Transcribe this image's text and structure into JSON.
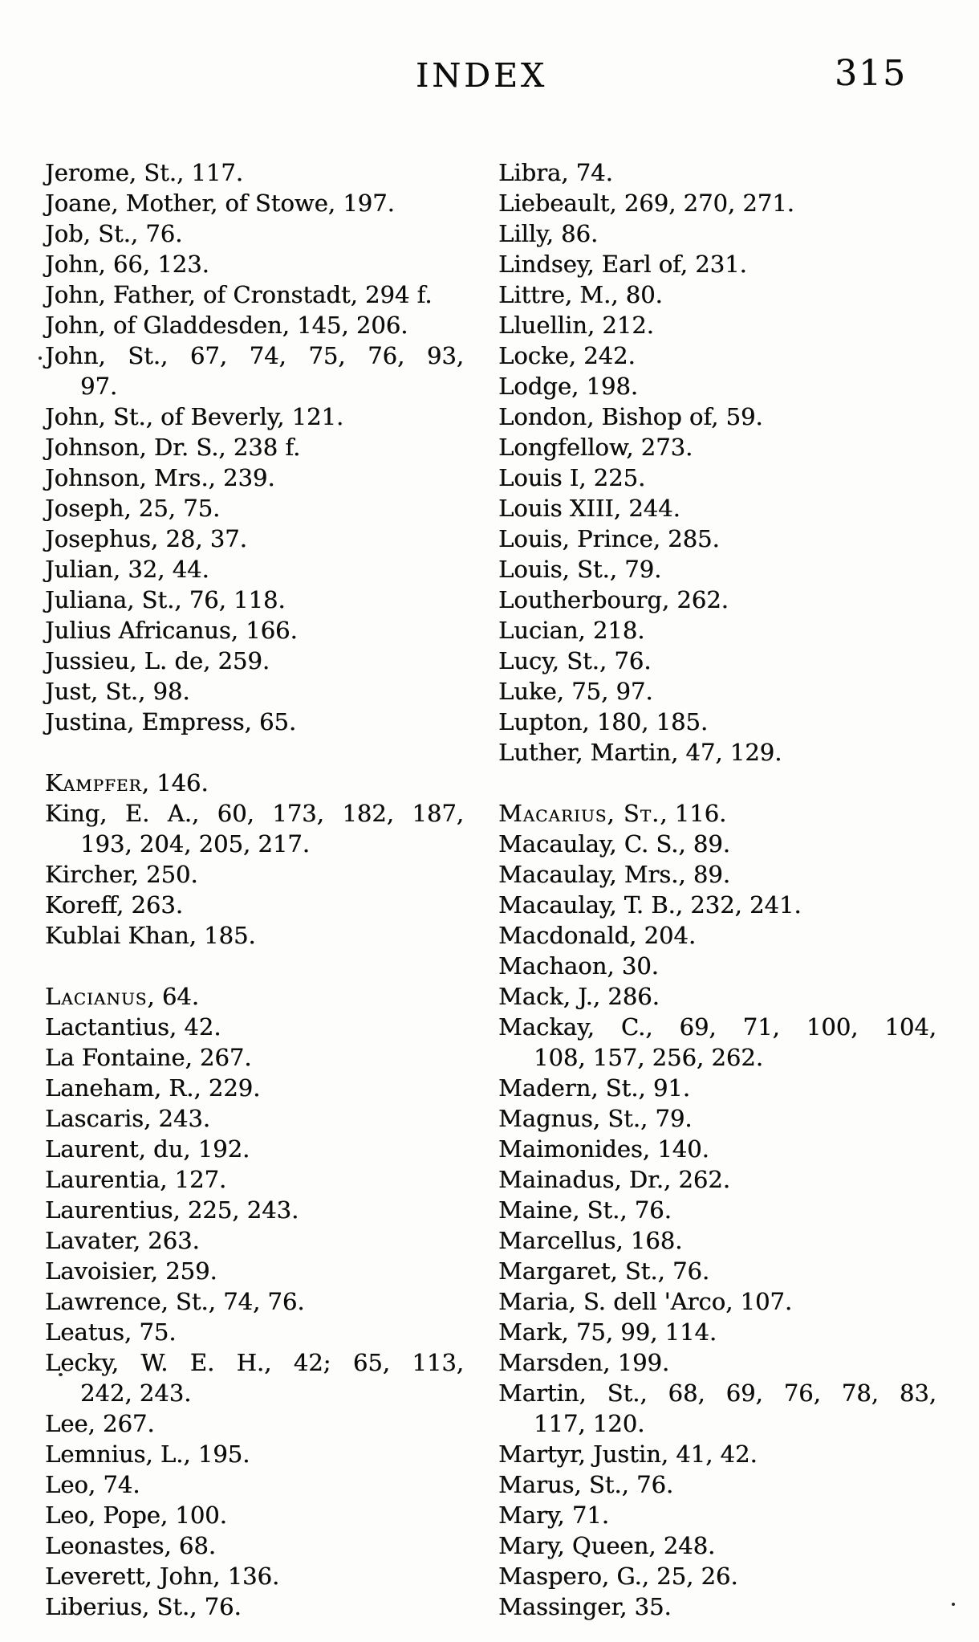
{
  "page": {
    "title": "INDEX",
    "page_number": "315"
  },
  "index": {
    "left": [
      {
        "t": "Jerome, St., 117."
      },
      {
        "t": "Joane, Mother, of Stowe, 197."
      },
      {
        "t": "Job, St., 76."
      },
      {
        "t": "John, 66, 123."
      },
      {
        "t": "John, Father, of Cronstadt, 294 f."
      },
      {
        "t": "John, of Gladdesden, 145, 206."
      },
      {
        "t": "John, St., 67, 74, 75, 76, 93,",
        "t2": "97."
      },
      {
        "t": "John, St., of Beverly, 121."
      },
      {
        "t": "Johnson, Dr. S., 238 f."
      },
      {
        "t": "Johnson, Mrs., 239."
      },
      {
        "t": "Joseph, 25, 75."
      },
      {
        "t": "Josephus, 28, 37."
      },
      {
        "t": "Julian, 32, 44."
      },
      {
        "t": "Juliana, St., 76, 118."
      },
      {
        "t": "Julius Africanus, 166."
      },
      {
        "t": "Jussieu, L. de, 259."
      },
      {
        "t": "Just, St., 98."
      },
      {
        "t": "Justina, Empress, 65."
      },
      {
        "sc": "Kampfer",
        "t": ", 146.",
        "gap": true
      },
      {
        "t": "King, E. A., 60, 173, 182, 187,",
        "t2": "193, 204, 205, 217."
      },
      {
        "t": "Kircher, 250."
      },
      {
        "t": "Koreff, 263."
      },
      {
        "t": "Kublai Khan, 185."
      },
      {
        "sc": "Lacianus",
        "t": ", 64.",
        "gap": true
      },
      {
        "t": "Lactantius, 42."
      },
      {
        "t": "La Fontaine, 267."
      },
      {
        "t": "Laneham, R., 229."
      },
      {
        "t": "Lascaris, 243."
      },
      {
        "t": "Laurent, du, 192."
      },
      {
        "t": "Laurentia, 127."
      },
      {
        "t": "Laurentius, 225, 243."
      },
      {
        "t": "Lavater, 263."
      },
      {
        "t": "Lavoisier, 259."
      },
      {
        "t": "Lawrence, St., 74, 76."
      },
      {
        "t": "Leatus, 75."
      },
      {
        "t": "Lecky, W. E. H., 42; 65, 113,",
        "t2": "242, 243."
      },
      {
        "t": "Lee, 267."
      },
      {
        "t": "Lemnius, L., 195."
      },
      {
        "t": "Leo, 74."
      },
      {
        "t": "Leo, Pope, 100."
      },
      {
        "t": "Leonastes, 68."
      },
      {
        "t": "Leverett, John, 136."
      },
      {
        "t": "Liberius, St., 76."
      }
    ],
    "right": [
      {
        "t": "Libra, 74."
      },
      {
        "t": "Liebeault, 269, 270, 271."
      },
      {
        "t": "Lilly, 86."
      },
      {
        "t": "Lindsey, Earl of, 231."
      },
      {
        "t": "Littre, M., 80."
      },
      {
        "t": "Lluellin, 212."
      },
      {
        "t": "Locke, 242."
      },
      {
        "t": "Lodge, 198."
      },
      {
        "t": "London, Bishop of, 59."
      },
      {
        "t": "Longfellow, 273."
      },
      {
        "t": "Louis I, 225."
      },
      {
        "t": "Louis XIII, 244."
      },
      {
        "t": "Louis, Prince, 285."
      },
      {
        "t": "Louis, St., 79."
      },
      {
        "t": "Loutherbourg, 262."
      },
      {
        "t": "Lucian, 218."
      },
      {
        "t": "Lucy, St., 76."
      },
      {
        "t": "Luke, 75, 97."
      },
      {
        "t": "Lupton, 180, 185."
      },
      {
        "t": "Luther, Martin, 47, 129."
      },
      {
        "sc": "Macarius, St.",
        "t": ", 116.",
        "gap": true
      },
      {
        "t": "Macaulay, C. S., 89."
      },
      {
        "t": "Macaulay, Mrs., 89."
      },
      {
        "t": "Macaulay, T. B., 232, 241."
      },
      {
        "t": "Macdonald, 204."
      },
      {
        "t": "Machaon, 30."
      },
      {
        "t": "Mack, J., 286."
      },
      {
        "t": "Mackay, C., 69, 71, 100, 104,",
        "t2": "108, 157, 256, 262."
      },
      {
        "t": "Madern, St., 91."
      },
      {
        "t": "Magnus, St., 79."
      },
      {
        "t": "Maimonides, 140."
      },
      {
        "t": "Mainadus, Dr., 262."
      },
      {
        "t": "Maine, St., 76."
      },
      {
        "t": "Marcellus, 168."
      },
      {
        "t": "Margaret, St., 76."
      },
      {
        "t": "Maria, S. dell 'Arco, 107."
      },
      {
        "t": "Mark, 75, 99, 114."
      },
      {
        "t": "Marsden, 199."
      },
      {
        "t": "Martin, St., 68, 69, 76, 78, 83,",
        "t2": "117, 120."
      },
      {
        "t": "Martyr, Justin, 41, 42."
      },
      {
        "t": "Marus, St., 76."
      },
      {
        "t": "Mary, 71."
      },
      {
        "t": "Mary, Queen, 248."
      },
      {
        "t": "Maspero, G., 25, 26."
      },
      {
        "t": "Massinger, 35."
      }
    ]
  }
}
